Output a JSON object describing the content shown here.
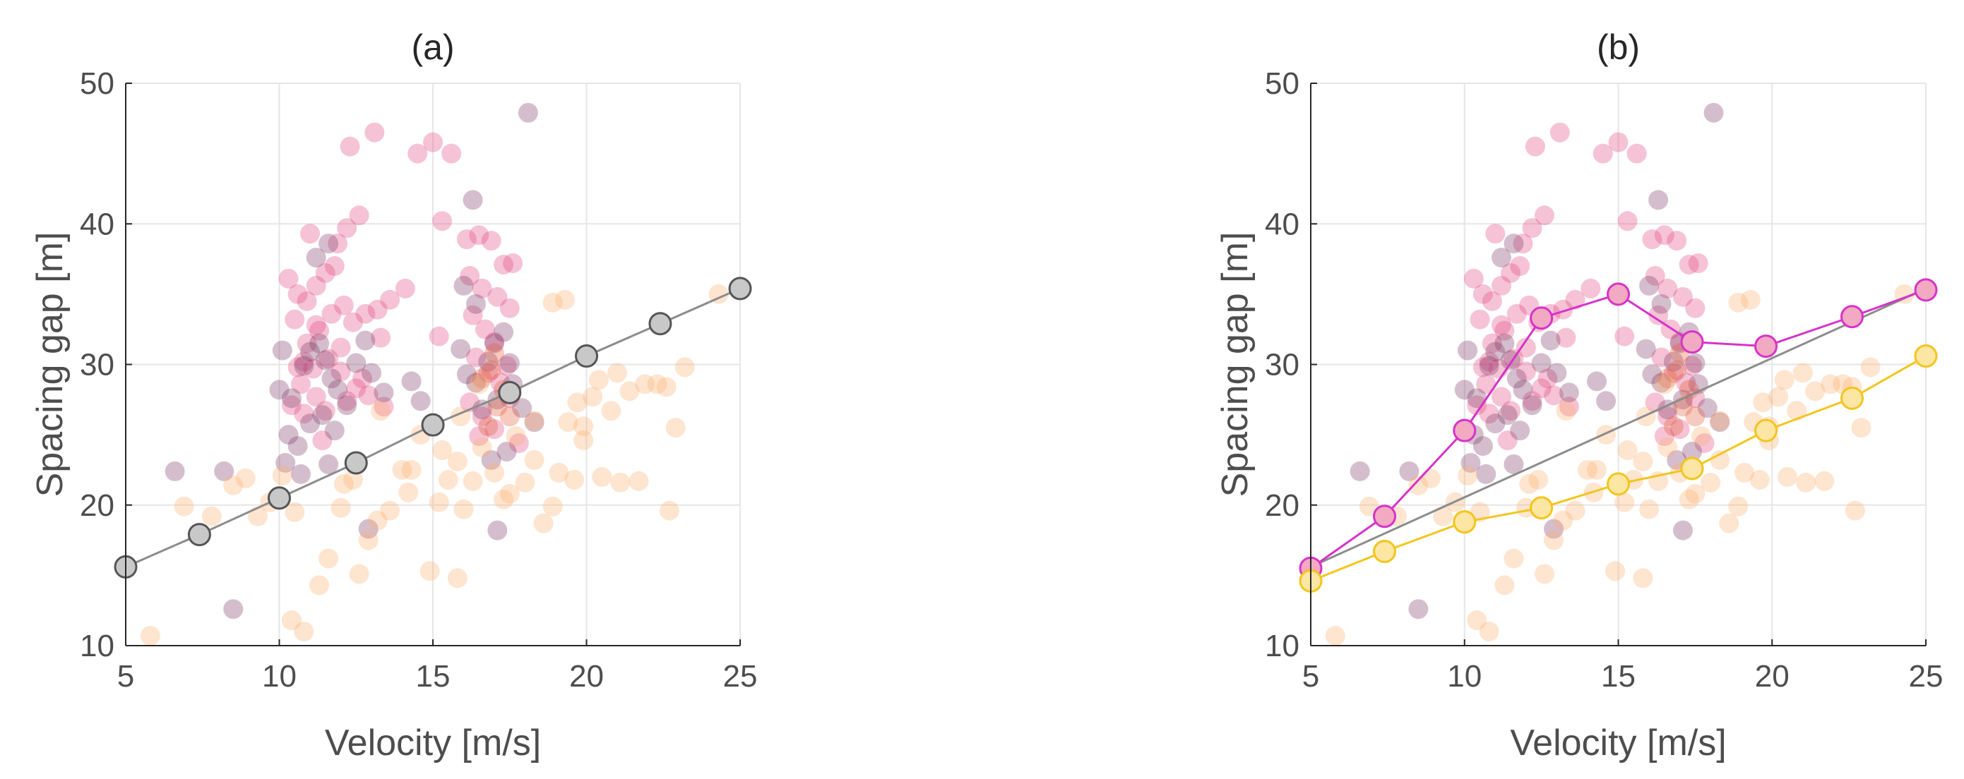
{
  "chart_data": [
    {
      "type": "scatter",
      "title": "(a)",
      "xlabel": "Velocity [m/s]",
      "ylabel": "Spacing gap [m]",
      "xlim": [
        5,
        25
      ],
      "ylim": [
        10,
        50
      ],
      "xticks": [
        5,
        10,
        15,
        20,
        25
      ],
      "yticks": [
        10,
        20,
        30,
        40,
        50
      ],
      "grid": true,
      "scatter_groups": [
        {
          "color": "#e0457b",
          "points": [
            [
              10.3,
              36.1
            ],
            [
              10.6,
              35.0
            ],
            [
              10.9,
              34.5
            ],
            [
              11.2,
              35.6
            ],
            [
              11.5,
              36.5
            ],
            [
              11.8,
              37.0
            ],
            [
              10.5,
              33.2
            ],
            [
              10.9,
              31.5
            ],
            [
              11.3,
              32.4
            ],
            [
              11.7,
              33.6
            ],
            [
              12.1,
              34.2
            ],
            [
              12.4,
              33.0
            ],
            [
              12.8,
              33.6
            ],
            [
              13.2,
              33.9
            ],
            [
              13.6,
              34.6
            ],
            [
              14.1,
              35.4
            ],
            [
              10.7,
              28.6
            ],
            [
              11.1,
              29.7
            ],
            [
              11.6,
              30.4
            ],
            [
              12.0,
              29.5
            ],
            [
              12.5,
              28.3
            ],
            [
              12.9,
              27.8
            ],
            [
              13.4,
              27.0
            ],
            [
              10.4,
              27.1
            ],
            [
              10.8,
              26.5
            ],
            [
              11.2,
              27.7
            ],
            [
              11.9,
              38.6
            ],
            [
              12.2,
              39.7
            ],
            [
              12.6,
              40.6
            ],
            [
              11.0,
              39.3
            ],
            [
              10.6,
              29.8
            ],
            [
              11.4,
              24.6
            ],
            [
              12.3,
              45.5
            ],
            [
              13.1,
              46.5
            ],
            [
              14.5,
              45.0
            ],
            [
              15.0,
              45.8
            ],
            [
              15.6,
              45.0
            ],
            [
              15.3,
              40.2
            ],
            [
              16.1,
              38.9
            ],
            [
              16.5,
              39.2
            ],
            [
              16.9,
              38.8
            ],
            [
              17.3,
              37.1
            ],
            [
              17.6,
              37.2
            ],
            [
              16.2,
              36.3
            ],
            [
              16.6,
              35.4
            ],
            [
              17.1,
              34.8
            ],
            [
              17.5,
              34.0
            ],
            [
              16.3,
              33.5
            ],
            [
              16.7,
              32.5
            ],
            [
              17.0,
              31.6
            ],
            [
              16.4,
              30.5
            ],
            [
              16.8,
              29.4
            ],
            [
              17.2,
              28.7
            ],
            [
              17.5,
              27.6
            ],
            [
              16.2,
              27.3
            ],
            [
              16.6,
              26.3
            ],
            [
              17.0,
              25.4
            ],
            [
              16.5,
              24.9
            ],
            [
              17.4,
              29.9
            ],
            [
              15.2,
              32.0
            ],
            [
              12.0,
              31.2
            ],
            [
              12.7,
              29.0
            ],
            [
              13.3,
              31.9
            ],
            [
              11.5,
              26.7
            ],
            [
              12.2,
              27.4
            ],
            [
              17.8,
              24.4
            ],
            [
              11.2,
              32.8
            ],
            [
              10.8,
              30.2
            ]
          ]
        },
        {
          "color": "#7a3462",
          "points": [
            [
              10.0,
              28.2
            ],
            [
              10.4,
              27.6
            ],
            [
              10.8,
              29.9
            ],
            [
              11.0,
              30.9
            ],
            [
              11.3,
              31.5
            ],
            [
              11.5,
              30.3
            ],
            [
              11.7,
              29.0
            ],
            [
              11.9,
              28.2
            ],
            [
              12.2,
              27.1
            ],
            [
              10.3,
              25.0
            ],
            [
              10.6,
              24.2
            ],
            [
              11.0,
              25.8
            ],
            [
              11.4,
              26.4
            ],
            [
              11.8,
              25.3
            ],
            [
              10.2,
              23.0
            ],
            [
              10.7,
              22.2
            ],
            [
              12.5,
              30.1
            ],
            [
              13.0,
              29.4
            ],
            [
              13.4,
              28.0
            ],
            [
              16.1,
              29.3
            ],
            [
              16.4,
              28.7
            ],
            [
              16.8,
              30.2
            ],
            [
              17.0,
              31.5
            ],
            [
              17.3,
              32.3
            ],
            [
              17.5,
              30.1
            ],
            [
              16.6,
              26.8
            ],
            [
              17.1,
              27.5
            ],
            [
              17.6,
              28.6
            ],
            [
              17.9,
              26.9
            ],
            [
              18.3,
              25.9
            ],
            [
              16.0,
              35.6
            ],
            [
              16.4,
              34.3
            ],
            [
              17.1,
              18.2
            ],
            [
              8.2,
              22.4
            ],
            [
              6.6,
              22.4
            ],
            [
              8.5,
              12.6
            ],
            [
              14.3,
              28.8
            ],
            [
              14.6,
              27.4
            ],
            [
              11.6,
              38.6
            ],
            [
              16.3,
              41.7
            ],
            [
              18.1,
              47.9
            ],
            [
              11.2,
              37.6
            ],
            [
              10.1,
              31.0
            ],
            [
              17.4,
              23.8
            ],
            [
              12.9,
              18.3
            ],
            [
              11.6,
              22.9
            ],
            [
              12.8,
              31.7
            ],
            [
              15.9,
              31.1
            ],
            [
              16.9,
              23.2
            ]
          ]
        },
        {
          "color": "#e25a34",
          "points": [
            [
              16.9,
              29.6
            ],
            [
              17.3,
              28.2
            ],
            [
              17.1,
              27.0
            ],
            [
              16.6,
              29.0
            ],
            [
              17.5,
              26.3
            ],
            [
              16.8,
              25.6
            ],
            [
              17.0,
              30.8
            ]
          ]
        },
        {
          "color": "#fbae6e",
          "points": [
            [
              5.8,
              10.7
            ],
            [
              6.9,
              19.9
            ],
            [
              7.8,
              19.2
            ],
            [
              8.5,
              21.4
            ],
            [
              8.9,
              21.9
            ],
            [
              9.3,
              19.2
            ],
            [
              9.7,
              20.2
            ],
            [
              10.1,
              22.1
            ],
            [
              10.5,
              19.5
            ],
            [
              10.4,
              11.8
            ],
            [
              10.8,
              11.0
            ],
            [
              11.3,
              14.3
            ],
            [
              11.6,
              16.2
            ],
            [
              12.0,
              19.8
            ],
            [
              12.4,
              21.8
            ],
            [
              12.6,
              15.1
            ],
            [
              12.9,
              17.5
            ],
            [
              13.2,
              18.9
            ],
            [
              13.6,
              19.6
            ],
            [
              14.0,
              22.5
            ],
            [
              14.2,
              20.9
            ],
            [
              14.6,
              25.0
            ],
            [
              14.9,
              15.3
            ],
            [
              15.2,
              20.2
            ],
            [
              15.5,
              21.8
            ],
            [
              15.8,
              14.8
            ],
            [
              16.0,
              19.7
            ],
            [
              16.3,
              21.7
            ],
            [
              16.6,
              24.1
            ],
            [
              17.0,
              22.3
            ],
            [
              17.3,
              20.4
            ],
            [
              17.7,
              24.9
            ],
            [
              18.0,
              21.6
            ],
            [
              18.3,
              23.2
            ],
            [
              18.6,
              18.7
            ],
            [
              18.9,
              19.9
            ],
            [
              19.1,
              22.3
            ],
            [
              19.4,
              25.9
            ],
            [
              19.6,
              21.8
            ],
            [
              19.9,
              24.6
            ],
            [
              20.2,
              27.7
            ],
            [
              20.5,
              22.0
            ],
            [
              20.8,
              26.7
            ],
            [
              21.1,
              21.6
            ],
            [
              21.4,
              28.1
            ],
            [
              21.7,
              21.7
            ],
            [
              21.9,
              28.6
            ],
            [
              22.3,
              28.6
            ],
            [
              22.6,
              28.4
            ],
            [
              22.9,
              25.5
            ],
            [
              23.2,
              29.8
            ],
            [
              22.7,
              19.6
            ],
            [
              19.3,
              34.6
            ],
            [
              18.9,
              34.4
            ],
            [
              24.3,
              35.0
            ],
            [
              15.3,
              23.9
            ],
            [
              15.9,
              26.3
            ],
            [
              19.7,
              27.3
            ],
            [
              20.4,
              28.9
            ],
            [
              16.5,
              28.6
            ],
            [
              18.3,
              26.0
            ],
            [
              12.1,
              21.5
            ],
            [
              15.8,
              23.1
            ],
            [
              21.0,
              29.4
            ],
            [
              13.3,
              26.7
            ],
            [
              17.5,
              20.8
            ],
            [
              19.9,
              25.6
            ],
            [
              14.3,
              22.5
            ]
          ]
        }
      ],
      "series": [
        {
          "line_color": "#8c8c8c",
          "marker_fill": "#c8c8c8",
          "marker_edge": "#555555",
          "x": [
            5.0,
            7.4,
            10.0,
            12.5,
            15.0,
            17.5,
            20.0,
            22.4,
            25.0
          ],
          "y": [
            15.6,
            17.9,
            20.5,
            23.0,
            25.7,
            28.0,
            30.6,
            32.9,
            35.4
          ],
          "markers_visible": [
            true,
            true,
            true,
            true,
            true,
            true,
            true,
            true,
            true
          ]
        }
      ]
    },
    {
      "type": "scatter",
      "title": "(b)",
      "xlabel": "Velocity [m/s]",
      "ylabel": "Spacing gap [m]",
      "xlim": [
        5,
        25
      ],
      "ylim": [
        10,
        50
      ],
      "xticks": [
        5,
        10,
        15,
        20,
        25
      ],
      "yticks": [
        10,
        20,
        30,
        40,
        50
      ],
      "grid": true,
      "scatter_groups": "same as panel (a)",
      "series": [
        {
          "line_color": "#8c8c8c",
          "x": [
            5.0,
            25.0
          ],
          "y": [
            15.6,
            35.4
          ],
          "markers_visible": [
            false,
            false
          ]
        },
        {
          "line_color": "#d633c9",
          "marker_fill": "#f2a9c2",
          "marker_edge": "#d633c9",
          "x": [
            5.0,
            7.4,
            10.0,
            12.5,
            15.0,
            17.4,
            19.8,
            22.6,
            25.0
          ],
          "y": [
            15.5,
            19.2,
            25.3,
            33.3,
            35.0,
            31.6,
            31.3,
            33.4,
            35.3
          ]
        },
        {
          "line_color": "#f3c51c",
          "marker_fill": "#fbe6a4",
          "marker_edge": "#f3c51c",
          "x": [
            5.0,
            7.4,
            10.0,
            12.5,
            15.0,
            17.4,
            19.8,
            22.6,
            25.0
          ],
          "y": [
            14.6,
            16.7,
            18.8,
            19.8,
            21.5,
            22.6,
            25.3,
            27.6,
            30.6
          ]
        }
      ]
    }
  ]
}
